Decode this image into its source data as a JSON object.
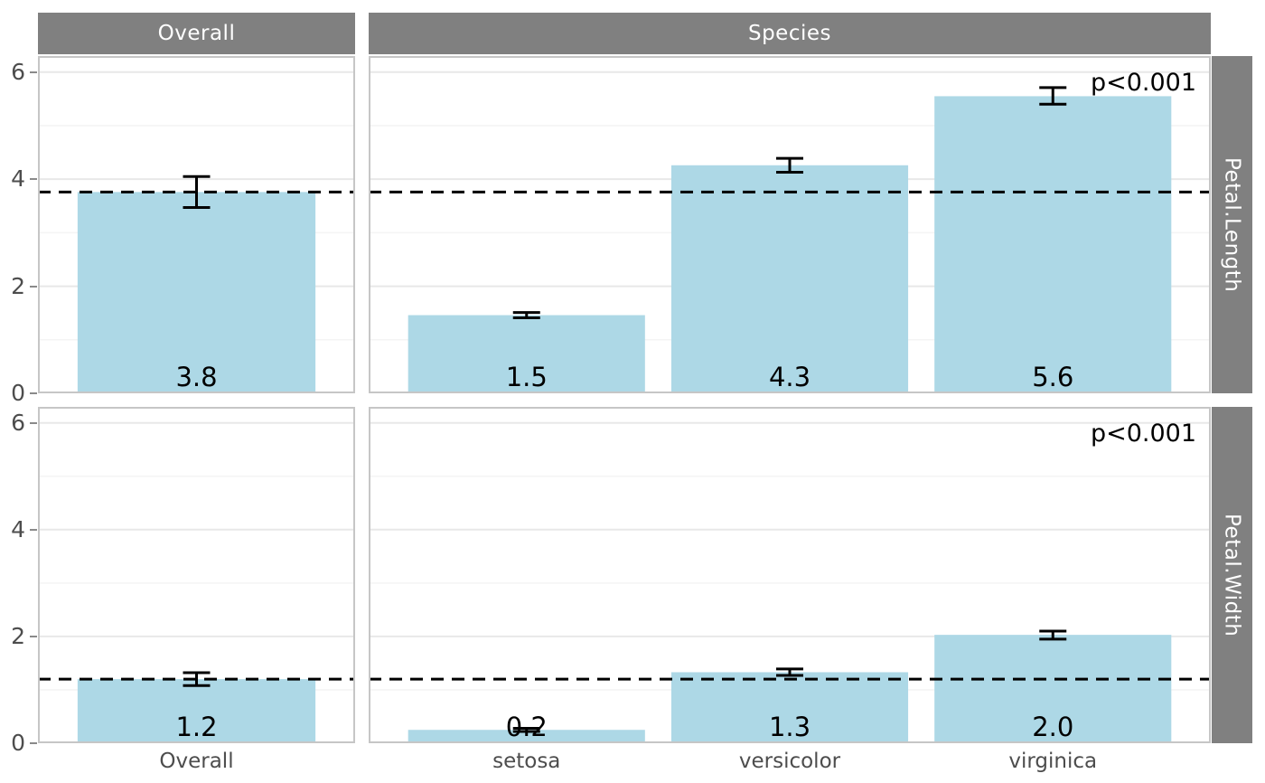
{
  "figure_colors": {
    "background": "#FFFFFF",
    "bar_fill": "#ADD8E6",
    "strip_fill": "#808080",
    "strip_text": "#FFFFFF",
    "panel_border": "#C6C6C6",
    "grid_major": "#E8E8E8",
    "grid_minor": "#F4F4F4",
    "axis_text": "#4D4D4D",
    "tick_mark": "#8A8A8A",
    "annotation": "#000000"
  },
  "strips": {
    "col_left": "Overall",
    "col_right": "Species",
    "row_top": "Petal.Length",
    "row_bottom": "Petal.Width"
  },
  "chart_data": [
    {
      "type": "bar",
      "facet_row": "Petal.Length",
      "ylim": [
        0,
        6.3
      ],
      "yticks": [
        0,
        2,
        4,
        6
      ],
      "grid_major": [
        2,
        4,
        6
      ],
      "grid_minor": [
        1,
        3,
        5
      ],
      "grid": true,
      "legend": "none",
      "dashed_line": 3.76,
      "panels": [
        {
          "strip": "Overall",
          "categories": [
            "Overall"
          ],
          "values": [
            3.76
          ],
          "ci_low": [
            3.47
          ],
          "ci_high": [
            4.05
          ],
          "bar_labels": [
            "3.8"
          ],
          "p_label": null
        },
        {
          "strip": "Species",
          "categories": [
            "setosa",
            "versicolor",
            "virginica"
          ],
          "values": [
            1.46,
            4.26,
            5.55
          ],
          "ci_low": [
            1.41,
            4.13,
            5.4
          ],
          "ci_high": [
            1.51,
            4.39,
            5.71
          ],
          "bar_labels": [
            "1.5",
            "4.3",
            "5.6"
          ],
          "p_label": "p<0.001"
        }
      ]
    },
    {
      "type": "bar",
      "facet_row": "Petal.Width",
      "ylim": [
        0,
        6.3
      ],
      "yticks": [
        0,
        2,
        4,
        6
      ],
      "grid_major": [
        2,
        4,
        6
      ],
      "grid_minor": [
        1,
        3,
        5
      ],
      "grid": true,
      "legend": "none",
      "dashed_line": 1.2,
      "panels": [
        {
          "strip": "Overall",
          "categories": [
            "Overall"
          ],
          "values": [
            1.2
          ],
          "ci_low": [
            1.08
          ],
          "ci_high": [
            1.32
          ],
          "bar_labels": [
            "1.2"
          ],
          "p_label": null
        },
        {
          "strip": "Species",
          "categories": [
            "setosa",
            "versicolor",
            "virginica"
          ],
          "values": [
            0.25,
            1.33,
            2.03
          ],
          "ci_low": [
            0.22,
            1.27,
            1.95
          ],
          "ci_high": [
            0.28,
            1.39,
            2.1
          ],
          "bar_labels": [
            "0.2",
            "1.3",
            "2.0"
          ],
          "p_label": "p<0.001"
        }
      ]
    }
  ]
}
